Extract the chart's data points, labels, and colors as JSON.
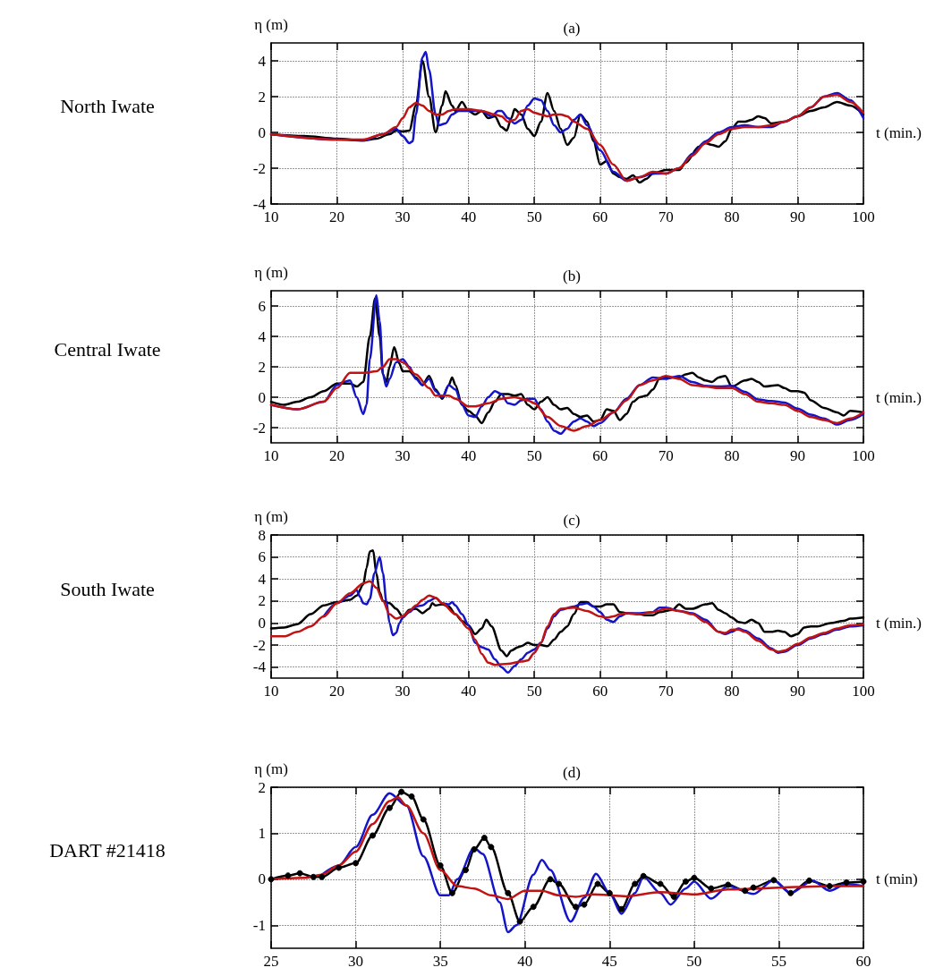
{
  "chart_data": [
    {
      "type": "line",
      "title": "(a)",
      "ylabel": "η (m)",
      "xlabel": "t (min.)",
      "annotations": [
        "North Iwate"
      ],
      "xlim": [
        10,
        100
      ],
      "xticks": [
        10,
        20,
        30,
        40,
        50,
        60,
        70,
        80,
        90,
        100
      ],
      "ylim": [
        -4,
        5
      ],
      "yticks": [
        -4,
        -2,
        0,
        2,
        4
      ],
      "grid": true,
      "line_style": "solid",
      "series": [
        {
          "color": "#000000",
          "x": [
            10,
            15,
            20,
            24,
            26,
            28,
            29,
            30,
            31,
            32,
            33,
            34,
            35,
            36,
            36.5,
            37.5,
            38,
            39,
            40,
            41,
            42,
            43,
            44,
            45,
            45.8,
            46.5,
            47,
            48,
            49,
            50,
            51,
            52,
            53,
            54,
            55,
            56,
            57,
            58,
            59,
            60,
            61,
            62,
            63,
            64,
            65,
            66,
            67,
            68,
            70,
            72,
            73,
            75,
            76,
            77,
            78,
            79,
            80,
            81,
            82,
            83,
            84,
            85,
            86,
            88,
            90,
            92,
            94,
            96,
            98,
            100
          ],
          "values": [
            -0.1,
            -0.2,
            -0.35,
            -0.45,
            -0.35,
            -0.1,
            0.1,
            0.05,
            0.1,
            1.5,
            4.0,
            2.0,
            0.0,
            1.5,
            2.3,
            1.5,
            1.2,
            1.7,
            1.2,
            1.0,
            1.2,
            0.8,
            0.9,
            0.3,
            0.1,
            0.8,
            1.3,
            1.0,
            0.2,
            -0.2,
            0.6,
            2.2,
            1.2,
            0.2,
            -0.7,
            -0.3,
            1.0,
            0.6,
            -0.5,
            -1.8,
            -1.6,
            -2.3,
            -2.5,
            -2.6,
            -2.4,
            -2.8,
            -2.6,
            -2.3,
            -2.1,
            -2.1,
            -1.7,
            -0.8,
            -0.6,
            -0.7,
            -0.8,
            -0.5,
            0.2,
            0.6,
            0.6,
            0.7,
            0.9,
            0.8,
            0.5,
            0.6,
            0.9,
            1.2,
            1.4,
            1.7,
            1.5,
            1.0
          ]
        },
        {
          "color": "#1414c8",
          "x": [
            10,
            20,
            24,
            27,
            29,
            30,
            31,
            31.5,
            32,
            33,
            33.5,
            34,
            35,
            35.5,
            36.5,
            37.5,
            38.5,
            40,
            42,
            43.5,
            44.5,
            45,
            46,
            47,
            48,
            49,
            50,
            51,
            52,
            53,
            54,
            55,
            56,
            57,
            58,
            60,
            62,
            64,
            66,
            68,
            70,
            72,
            74,
            76,
            78,
            80,
            82,
            84,
            86,
            88,
            90,
            92,
            94,
            96,
            98,
            100
          ],
          "values": [
            -0.1,
            -0.4,
            -0.45,
            -0.1,
            0.2,
            -0.2,
            -0.6,
            -0.5,
            1.0,
            4.2,
            4.5,
            3.5,
            1.0,
            0.4,
            0.5,
            1.0,
            1.2,
            1.2,
            1.2,
            0.9,
            1.2,
            1.2,
            0.8,
            0.5,
            0.7,
            1.5,
            1.9,
            1.8,
            1.2,
            0.4,
            0.0,
            0.2,
            0.7,
            1.0,
            0.4,
            -1.0,
            -2.2,
            -2.7,
            -2.5,
            -2.3,
            -2.3,
            -2.0,
            -1.2,
            -0.5,
            0.0,
            0.3,
            0.4,
            0.3,
            0.3,
            0.6,
            0.9,
            1.4,
            2.0,
            2.2,
            1.8,
            0.8
          ]
        },
        {
          "color": "#c01414",
          "x": [
            10,
            20,
            24,
            27,
            29,
            30,
            31,
            32,
            33,
            34,
            35,
            36,
            37,
            38,
            40,
            42,
            44,
            45,
            46,
            47,
            48,
            49,
            50,
            51,
            52,
            53,
            54,
            55,
            56,
            58,
            60,
            62,
            64,
            66,
            68,
            70,
            72,
            74,
            76,
            78,
            80,
            82,
            84,
            86,
            88,
            90,
            92,
            94,
            96,
            98,
            100
          ],
          "values": [
            -0.1,
            -0.4,
            -0.4,
            -0.1,
            0.3,
            0.8,
            1.4,
            1.65,
            1.5,
            1.2,
            1.0,
            1.0,
            1.2,
            1.3,
            1.3,
            1.2,
            1.0,
            0.9,
            0.6,
            0.7,
            1.2,
            1.3,
            1.1,
            1.0,
            0.9,
            1.0,
            1.0,
            0.9,
            0.6,
            0.2,
            -0.7,
            -1.8,
            -2.7,
            -2.5,
            -2.2,
            -2.3,
            -2.0,
            -1.3,
            -0.6,
            -0.1,
            0.2,
            0.3,
            0.3,
            0.4,
            0.6,
            0.9,
            1.4,
            2.0,
            2.1,
            1.7,
            1.1
          ]
        }
      ]
    },
    {
      "type": "line",
      "title": "(b)",
      "ylabel": "η (m)",
      "xlabel": "t (min.)",
      "annotations": [
        "Central Iwate"
      ],
      "xlim": [
        10,
        100
      ],
      "xticks": [
        10,
        20,
        30,
        40,
        50,
        60,
        70,
        80,
        90,
        100
      ],
      "ylim": [
        -3,
        7
      ],
      "yticks": [
        -2,
        0,
        2,
        4,
        6
      ],
      "grid": true,
      "line_style": "solid",
      "series": [
        {
          "color": "#000000",
          "x": [
            10,
            12,
            14,
            16,
            18,
            20,
            22,
            23,
            24,
            25,
            25.8,
            26.5,
            27,
            27.5,
            28,
            28.7,
            29.5,
            30,
            31,
            32,
            33,
            34,
            35,
            36,
            37,
            37.5,
            38,
            39,
            40,
            41,
            42,
            43,
            44,
            45,
            46,
            47,
            48,
            49,
            50,
            51,
            52,
            53,
            54,
            55,
            56,
            57,
            58,
            59,
            60,
            61,
            62,
            63,
            64,
            65,
            66,
            67,
            68,
            69,
            70,
            71,
            72,
            73,
            74,
            75,
            76,
            77,
            78,
            79,
            80,
            82,
            83,
            84,
            85,
            87,
            88,
            89,
            90,
            91,
            92,
            94,
            96,
            97,
            98,
            100
          ],
          "values": [
            -0.3,
            -0.5,
            -0.3,
            0.0,
            0.4,
            0.9,
            0.9,
            0.7,
            1.0,
            4.0,
            6.5,
            4.0,
            1.5,
            1.0,
            2.0,
            3.3,
            2.2,
            1.7,
            1.7,
            1.3,
            0.8,
            1.4,
            0.5,
            -0.1,
            0.8,
            1.3,
            0.8,
            -0.5,
            -0.9,
            -1.2,
            -1.7,
            -1.0,
            -0.3,
            0.2,
            0.2,
            0.1,
            0.2,
            -0.5,
            -0.8,
            -0.3,
            0.0,
            -0.5,
            -0.8,
            -0.7,
            -1.1,
            -1.3,
            -1.2,
            -1.6,
            -1.5,
            -0.8,
            -0.9,
            -1.5,
            -1.1,
            -0.3,
            0.0,
            0.1,
            0.5,
            1.2,
            1.3,
            1.3,
            1.3,
            1.5,
            1.6,
            1.3,
            1.1,
            1.0,
            1.3,
            1.4,
            0.7,
            1.1,
            1.2,
            1.0,
            0.7,
            0.8,
            0.6,
            0.4,
            0.4,
            0.3,
            -0.2,
            -0.7,
            -1.0,
            -1.2,
            -0.9,
            -1.0
          ]
        },
        {
          "color": "#1414c8",
          "x": [
            10,
            14,
            18,
            20,
            21,
            22,
            23,
            24,
            24.5,
            25,
            26,
            26.5,
            27,
            27.5,
            28,
            29,
            30,
            31,
            32,
            33,
            34,
            35,
            36,
            37,
            38,
            39,
            40,
            41,
            42,
            43,
            44,
            45,
            46,
            47,
            48,
            49,
            50,
            51,
            52,
            53,
            54,
            55,
            56,
            57,
            58,
            59,
            60,
            62,
            64,
            66,
            68,
            70,
            72,
            74,
            76,
            78,
            80,
            82,
            84,
            86,
            88,
            90,
            92,
            94,
            96,
            98,
            100
          ],
          "values": [
            -0.5,
            -0.8,
            -0.3,
            0.8,
            1.0,
            1.1,
            0.0,
            -1.1,
            -0.5,
            2.5,
            6.7,
            5.0,
            1.5,
            0.7,
            1.2,
            2.3,
            2.5,
            2.0,
            1.2,
            0.8,
            1.2,
            0.4,
            0.0,
            0.8,
            0.5,
            -0.5,
            -1.2,
            -1.3,
            -0.6,
            0.0,
            0.4,
            0.2,
            -0.4,
            -0.5,
            -0.2,
            -0.1,
            -0.1,
            -0.8,
            -1.6,
            -2.2,
            -2.4,
            -2.0,
            -1.6,
            -1.4,
            -1.6,
            -1.9,
            -1.7,
            -1.0,
            -0.1,
            0.8,
            1.3,
            1.2,
            1.4,
            1.0,
            0.75,
            0.7,
            0.75,
            0.35,
            -0.15,
            -0.25,
            -0.35,
            -0.75,
            -1.15,
            -1.4,
            -1.8,
            -1.5,
            -1.1
          ]
        },
        {
          "color": "#c01414",
          "x": [
            10,
            14,
            18,
            20,
            22,
            24,
            26,
            27,
            28,
            29,
            30,
            32,
            34,
            35,
            36,
            37,
            38,
            40,
            41,
            43,
            45,
            47,
            49,
            50,
            52,
            54,
            56,
            58,
            60,
            62,
            64,
            66,
            68,
            70,
            72,
            74,
            76,
            78,
            80,
            82,
            84,
            86,
            88,
            90,
            92,
            94,
            96,
            98,
            100
          ],
          "values": [
            -0.5,
            -0.8,
            -0.3,
            0.6,
            1.6,
            1.6,
            1.7,
            2.0,
            2.5,
            2.5,
            2.3,
            1.5,
            0.6,
            0.1,
            0.1,
            0.1,
            -0.1,
            -0.6,
            -0.6,
            -0.4,
            -0.1,
            0.0,
            -0.2,
            -0.4,
            -1.3,
            -1.9,
            -2.2,
            -1.9,
            -1.5,
            -1.0,
            -0.2,
            0.8,
            1.1,
            1.4,
            1.2,
            0.8,
            0.7,
            0.6,
            0.6,
            0.2,
            -0.3,
            -0.4,
            -0.5,
            -0.9,
            -1.3,
            -1.5,
            -1.7,
            -1.4,
            -1.0
          ]
        }
      ]
    },
    {
      "type": "line",
      "title": "(c)",
      "ylabel": "η (m)",
      "xlabel": "t (min.)",
      "annotations": [
        "South Iwate"
      ],
      "xlim": [
        10,
        100
      ],
      "xticks": [
        10,
        20,
        30,
        40,
        50,
        60,
        70,
        80,
        90,
        100
      ],
      "ylim": [
        -5,
        8
      ],
      "yticks": [
        -4,
        -2,
        0,
        2,
        4,
        6,
        8
      ],
      "grid": true,
      "line_style": "solid",
      "series": [
        {
          "color": "#000000",
          "x": [
            10,
            12,
            14,
            16,
            18,
            20,
            22,
            23,
            24,
            24.5,
            25,
            25.5,
            26,
            26.5,
            27,
            28,
            29,
            30,
            31,
            32,
            33,
            34,
            34.5,
            35,
            36,
            37,
            38,
            39,
            40,
            41,
            42,
            42.7,
            43.5,
            45,
            45.8,
            46.5,
            47.5,
            48,
            49,
            50,
            51,
            52,
            53,
            54,
            55,
            56,
            57,
            58,
            59,
            60,
            61,
            62,
            63,
            64,
            66,
            67,
            68,
            69,
            71,
            72,
            73,
            74,
            76,
            77,
            78,
            79,
            80,
            81,
            82,
            83,
            84,
            85,
            86,
            87,
            88,
            89,
            90,
            91,
            92,
            93,
            95,
            97,
            98,
            100
          ],
          "values": [
            -0.5,
            -0.4,
            -0.1,
            0.8,
            1.6,
            1.9,
            2.1,
            2.5,
            3.5,
            5.0,
            6.5,
            6.6,
            4.5,
            2.8,
            2.0,
            1.8,
            1.3,
            0.6,
            1.2,
            1.3,
            0.9,
            1.3,
            1.8,
            1.6,
            1.7,
            1.5,
            0.8,
            0.2,
            -0.2,
            -1.0,
            -0.5,
            0.3,
            -0.3,
            -2.5,
            -3.0,
            -2.5,
            -2.2,
            -2.1,
            -1.8,
            -2.0,
            -2.0,
            -2.1,
            -1.5,
            -0.8,
            -0.3,
            0.8,
            1.9,
            1.9,
            1.5,
            1.5,
            1.7,
            1.7,
            1.0,
            0.9,
            0.8,
            0.7,
            0.7,
            1.0,
            1.2,
            1.7,
            1.3,
            1.3,
            1.7,
            1.8,
            1.2,
            0.9,
            0.5,
            0.1,
            0.0,
            0.3,
            0.0,
            -0.8,
            -0.8,
            -0.7,
            -0.8,
            -1.2,
            -1.0,
            -0.4,
            -0.3,
            -0.3,
            0.0,
            0.2,
            0.4,
            0.5
          ]
        },
        {
          "color": "#1414c8",
          "x": [
            18,
            20,
            22,
            23,
            23.5,
            24,
            24.5,
            25,
            25.7,
            26.5,
            27,
            27.5,
            28,
            28.5,
            29,
            29.5,
            30,
            31,
            32,
            33,
            34,
            35,
            36,
            37,
            37.5,
            38,
            39,
            40,
            41,
            42,
            43,
            44,
            45,
            46,
            47,
            48,
            49,
            50,
            51,
            52,
            53,
            54,
            56,
            57,
            58,
            59,
            60,
            61,
            62,
            63,
            64,
            66,
            68,
            69,
            70,
            72,
            74,
            76,
            78,
            79,
            80,
            81,
            82,
            84,
            86,
            87,
            88,
            90,
            92,
            94,
            96,
            98,
            100
          ],
          "values": [
            0.6,
            1.8,
            2.5,
            3.0,
            2.4,
            1.8,
            1.7,
            2.2,
            4.5,
            6.0,
            4.5,
            2.0,
            0.0,
            -1.1,
            -0.9,
            0.0,
            0.5,
            1.0,
            1.5,
            1.6,
            2.0,
            2.3,
            1.8,
            1.7,
            1.9,
            1.6,
            0.8,
            -0.2,
            -1.8,
            -2.2,
            -2.4,
            -3.3,
            -4.0,
            -4.5,
            -3.9,
            -3.3,
            -2.7,
            -2.4,
            -1.8,
            -0.5,
            0.6,
            1.2,
            1.5,
            1.7,
            1.8,
            1.5,
            1.0,
            0.3,
            0.1,
            0.6,
            0.9,
            0.9,
            1.0,
            1.4,
            1.4,
            1.1,
            0.9,
            0.3,
            -0.8,
            -1.0,
            -0.8,
            -0.5,
            -0.7,
            -1.4,
            -2.3,
            -2.7,
            -2.6,
            -2.0,
            -1.4,
            -1.0,
            -0.6,
            -0.3,
            -0.2
          ]
        },
        {
          "color": "#c01414",
          "x": [
            10,
            12,
            14,
            16,
            18,
            20,
            22,
            24,
            25,
            26,
            27,
            28,
            29,
            30,
            31,
            32,
            33,
            34,
            35,
            36,
            38,
            40,
            41,
            42,
            43,
            44,
            46,
            48,
            49,
            50,
            51,
            52,
            53,
            54,
            56,
            58,
            60,
            61,
            62,
            63,
            64,
            66,
            68,
            70,
            72,
            74,
            76,
            78,
            79,
            80,
            81,
            82,
            84,
            86,
            87,
            88,
            90,
            92,
            94,
            96,
            98,
            100
          ],
          "values": [
            -1.2,
            -1.2,
            -0.8,
            -0.3,
            0.6,
            1.8,
            2.7,
            3.6,
            3.8,
            3.2,
            2.0,
            0.8,
            0.4,
            0.6,
            1.1,
            1.6,
            2.1,
            2.5,
            2.3,
            1.8,
            0.8,
            -0.5,
            -1.5,
            -2.8,
            -3.6,
            -3.8,
            -3.7,
            -3.5,
            -3.4,
            -2.7,
            -1.8,
            -0.3,
            0.8,
            1.3,
            1.4,
            1.1,
            0.6,
            0.5,
            0.6,
            0.8,
            0.9,
            0.8,
            1.0,
            1.3,
            1.1,
            0.8,
            0.1,
            -0.8,
            -0.9,
            -0.6,
            -0.6,
            -0.8,
            -1.6,
            -2.4,
            -2.6,
            -2.5,
            -1.9,
            -1.3,
            -0.9,
            -0.5,
            -0.2,
            -0.1
          ]
        }
      ]
    },
    {
      "type": "line",
      "title": "(d)",
      "ylabel": "η (m)",
      "xlabel": "t (min)",
      "annotations": [
        "DART #21418"
      ],
      "xlim": [
        25,
        60
      ],
      "xticks": [
        25,
        30,
        35,
        40,
        45,
        50,
        55,
        60
      ],
      "ylim": [
        -1.5,
        2
      ],
      "yticks": [
        -1,
        0,
        1,
        2
      ],
      "grid": true,
      "line_style": "solid",
      "series": [
        {
          "color": "#000000",
          "marker": "circle",
          "x": [
            25,
            26,
            26.7,
            27.5,
            28,
            29,
            30,
            31,
            32,
            32.7,
            33.3,
            34,
            35,
            35.7,
            36.5,
            37,
            37.6,
            38,
            39,
            39.7,
            40.5,
            41.5,
            42,
            43,
            43.5,
            44.3,
            45,
            45.7,
            46.5,
            47,
            48,
            48.8,
            49.5,
            50,
            51,
            52,
            53,
            53.5,
            54.7,
            55.7,
            56.8,
            58,
            59,
            60
          ],
          "values": [
            0.0,
            0.08,
            0.13,
            0.05,
            0.05,
            0.25,
            0.35,
            0.95,
            1.55,
            1.9,
            1.8,
            1.3,
            0.3,
            -0.3,
            0.2,
            0.65,
            0.9,
            0.7,
            -0.3,
            -0.92,
            -0.6,
            0.0,
            -0.1,
            -0.6,
            -0.55,
            -0.1,
            -0.3,
            -0.65,
            -0.1,
            0.07,
            -0.1,
            -0.38,
            -0.05,
            0.03,
            -0.2,
            -0.12,
            -0.25,
            -0.18,
            -0.02,
            -0.3,
            -0.03,
            -0.15,
            -0.07,
            -0.05
          ]
        },
        {
          "color": "#1414c8",
          "x": [
            28,
            29,
            30,
            31,
            32,
            33,
            34,
            35,
            35.5,
            36,
            37,
            37.5,
            38.5,
            39,
            39.5,
            40.5,
            41,
            41.5,
            42.7,
            43.5,
            44.2,
            45,
            45.7,
            46.5,
            47,
            48,
            48.6,
            49.5,
            50,
            51,
            52,
            53.5,
            54.7,
            55.7,
            57,
            58,
            59,
            60
          ],
          "values": [
            0.1,
            0.3,
            0.7,
            1.4,
            1.87,
            1.6,
            0.5,
            -0.35,
            -0.35,
            0.0,
            0.68,
            0.55,
            -0.5,
            -1.15,
            -1.0,
            0.1,
            0.42,
            0.2,
            -0.92,
            -0.4,
            0.12,
            -0.3,
            -0.75,
            -0.3,
            0.05,
            -0.3,
            -0.55,
            -0.2,
            -0.05,
            -0.42,
            -0.15,
            -0.32,
            -0.02,
            -0.3,
            -0.03,
            -0.25,
            -0.1,
            -0.15
          ]
        },
        {
          "color": "#c01414",
          "x": [
            25,
            27,
            28,
            29,
            30,
            31,
            32,
            32.5,
            33,
            34,
            35,
            36,
            37,
            38,
            39,
            40,
            41,
            42,
            43,
            44,
            46,
            48,
            50,
            52,
            54,
            56,
            58,
            60
          ],
          "values": [
            0.0,
            0.03,
            0.1,
            0.3,
            0.6,
            1.2,
            1.7,
            1.78,
            1.6,
            1.0,
            0.2,
            -0.15,
            -0.2,
            -0.35,
            -0.43,
            -0.25,
            -0.25,
            -0.35,
            -0.38,
            -0.33,
            -0.37,
            -0.28,
            -0.33,
            -0.22,
            -0.2,
            -0.17,
            -0.15,
            -0.15
          ]
        }
      ]
    }
  ]
}
